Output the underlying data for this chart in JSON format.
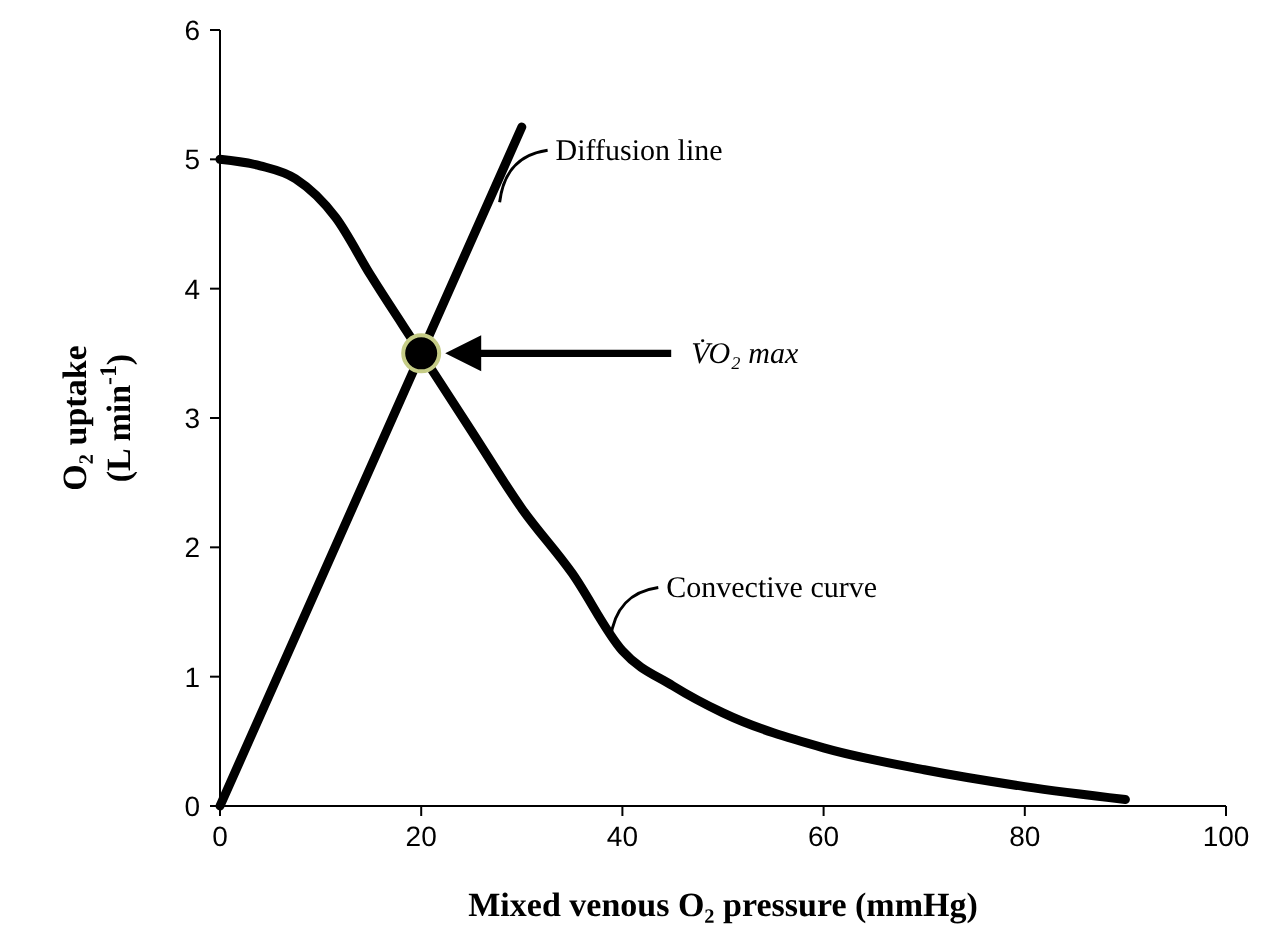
{
  "chart_data": {
    "type": "line",
    "xlabel": "Mixed venous O₂ pressure (mmHg)",
    "ylabel": "O₂ uptake (L min$^{-1}$)",
    "xlim": [
      0,
      100
    ],
    "ylim": [
      0,
      6
    ],
    "xticks": [
      0,
      20,
      40,
      60,
      80,
      100
    ],
    "yticks": [
      0,
      1,
      2,
      3,
      4,
      5,
      6
    ],
    "grid": false,
    "series": [
      {
        "color": "#000000",
        "x": [
          0,
          4,
          7.5,
          11.5,
          15,
          20,
          25,
          30,
          35,
          40,
          45,
          50,
          60,
          70,
          80,
          90
        ],
        "values": [
          5,
          4.95,
          4.85,
          4.55,
          4.1,
          3.5,
          2.9,
          2.3,
          1.8,
          1.2,
          0.93,
          0.72,
          0.45,
          0.28,
          0.15,
          0.05
        ]
      },
      {
        "color": "#000000",
        "x": [
          0,
          30
        ],
        "values": [
          0,
          5.25
        ]
      },
      {
        "type": "scatter",
        "color": "#000000",
        "marker": "circle",
        "x": [
          20
        ],
        "values": [
          3.5
        ]
      }
    ],
    "annotations": [
      {
        "text": "Diffusion line",
        "x": 27,
        "y": 4.73
      },
      {
        "text": "Convective curve",
        "x": 38,
        "y": 1.35
      },
      "V̇O₂ max"
    ]
  }
}
